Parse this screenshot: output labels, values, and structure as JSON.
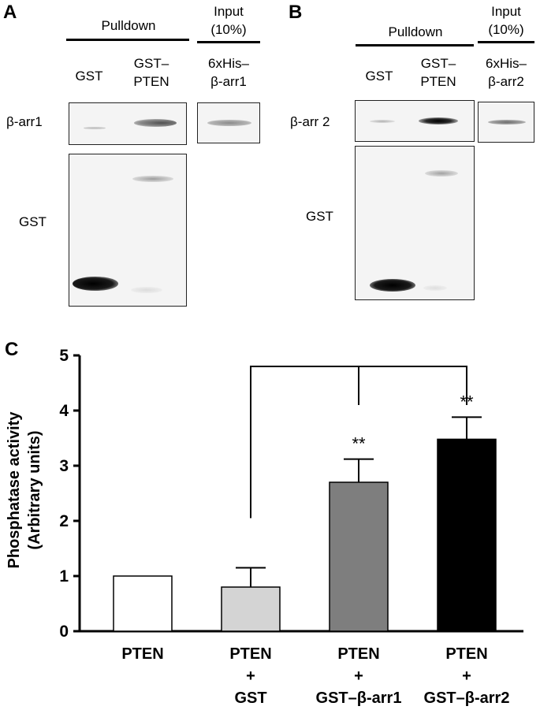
{
  "panel_a": {
    "letter": "A",
    "pulldown_label": "Pulldown",
    "input_label_line1": "Input",
    "input_label_line2": "(10%)",
    "lane_gst": "GST",
    "lane_gstpten_line1": "GST–",
    "lane_gstpten_line2": "PTEN",
    "lane_input_line1": "6xHis–",
    "lane_input_line2": "β-arr1",
    "row_top_label": "β-arr1",
    "row_bottom_label": "GST"
  },
  "panel_b": {
    "letter": "B",
    "pulldown_label": "Pulldown",
    "input_label_line1": "Input",
    "input_label_line2": "(10%)",
    "lane_gst": "GST",
    "lane_gstpten_line1": "GST–",
    "lane_gstpten_line2": "PTEN",
    "lane_input_line1": "6xHis–",
    "lane_input_line2": "β-arr2",
    "row_top_label": "β-arr 2",
    "row_bottom_label": "GST"
  },
  "panel_c": {
    "letter": "C"
  },
  "chart_data": {
    "type": "bar",
    "ylabel_line1": "Phosphatase activity",
    "ylabel_line2": "(Arbitrary units)",
    "ylim": [
      0,
      5
    ],
    "yticks": [
      "0",
      "1",
      "2",
      "3",
      "4",
      "5"
    ],
    "categories": [
      [
        "PTEN"
      ],
      [
        "PTEN",
        "+",
        "GST"
      ],
      [
        "PTEN",
        "+",
        "GST–β-arr1"
      ],
      [
        "PTEN",
        "+",
        "GST–β-arr2"
      ]
    ],
    "values": [
      1.0,
      0.8,
      2.7,
      3.48
    ],
    "errors": [
      0,
      0.35,
      0.42,
      0.4
    ],
    "colors": [
      "#ffffff",
      "#d4d4d4",
      "#7e7e7e",
      "#000000"
    ],
    "significance": [
      "",
      "",
      "**",
      "**"
    ],
    "comparison_bracket": "GST vs GST–β-arr1 and GST–β-arr2"
  }
}
